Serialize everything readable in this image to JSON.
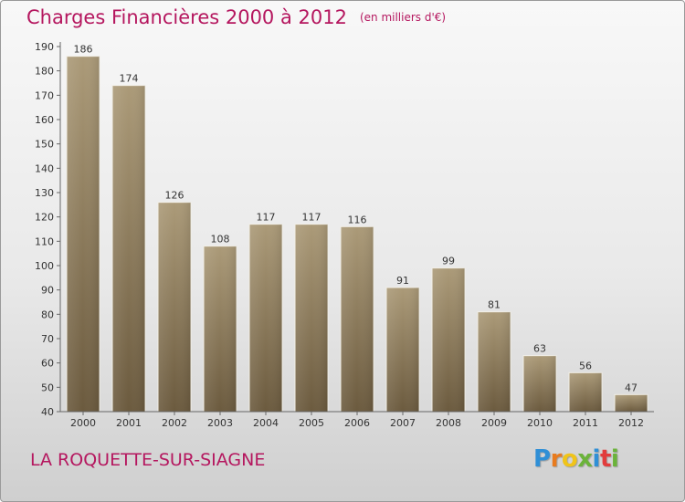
{
  "header": {
    "title": "Charges Financières 2000 à 2012",
    "subtitle": "(en milliers d'€)"
  },
  "footer": {
    "commune": "LA ROQUETTE-SUR-SIAGNE",
    "logo_letters": [
      "P",
      "r",
      "o",
      "x",
      "i",
      "t",
      "i"
    ],
    "logo_colors": [
      "#2f8fd6",
      "#e87b1e",
      "#f0c419",
      "#6bb33a",
      "#2f8fd6",
      "#e23c3c",
      "#6bb33a"
    ]
  },
  "chart_data": {
    "type": "bar",
    "categories": [
      "2000",
      "2001",
      "2002",
      "2003",
      "2004",
      "2005",
      "2006",
      "2007",
      "2008",
      "2009",
      "2010",
      "2011",
      "2012"
    ],
    "values": [
      186,
      174,
      126,
      108,
      117,
      117,
      116,
      91,
      99,
      81,
      63,
      56,
      47
    ],
    "title": "Charges Financières 2000 à 2012",
    "subtitle": "(en milliers d'€)",
    "ylim": [
      40,
      190
    ],
    "yticks": [
      40,
      50,
      60,
      70,
      80,
      90,
      100,
      110,
      120,
      130,
      140,
      150,
      160,
      170,
      180,
      190
    ],
    "grid": false,
    "colors": {
      "bar_top": "#ab9a78",
      "bar_bottom": "#6b5a3e",
      "title": "#b5175f"
    }
  }
}
